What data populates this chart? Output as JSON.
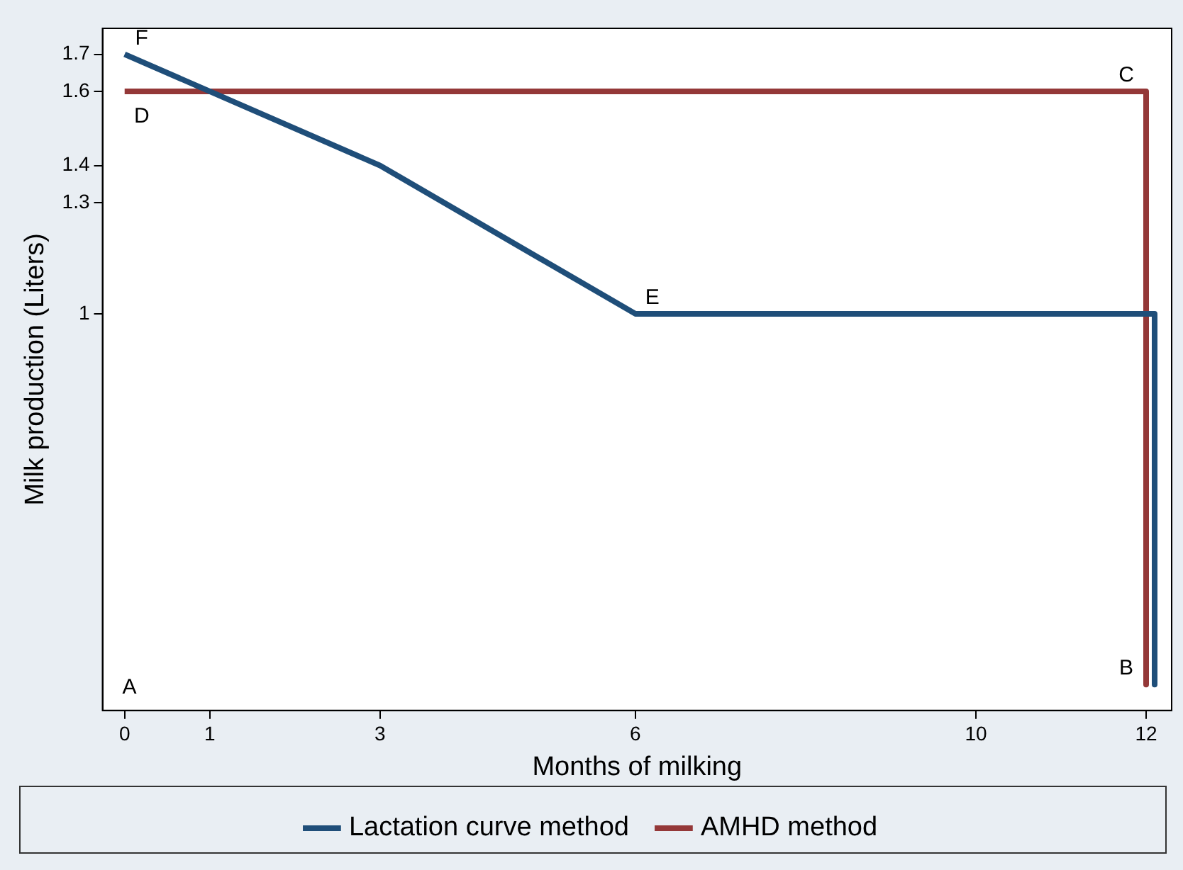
{
  "chart_data": {
    "type": "line",
    "xlabel": "Months of milking",
    "ylabel": "Milk production (Liters)",
    "xlim": [
      -0.26,
      12.3
    ],
    "xticks": [
      0,
      1,
      3,
      6,
      10,
      12
    ],
    "ylim": [
      -0.07,
      1.77
    ],
    "yticks": [
      1,
      1.3,
      1.4,
      1.6,
      1.7
    ],
    "series": [
      {
        "name": "Lactation curve method",
        "color": "#1f4e79",
        "x": [
          0,
          3,
          6,
          12.1,
          12.1
        ],
        "values": [
          1.7,
          1.4,
          1,
          1,
          0
        ]
      },
      {
        "name": "AMHD method",
        "color": "#943838",
        "x": [
          0,
          12,
          12
        ],
        "values": [
          1.6,
          1.6,
          0
        ]
      }
    ],
    "annotations": [
      {
        "text": "F",
        "x": 0,
        "y": 1.7
      },
      {
        "text": "D",
        "x": 0,
        "y": 1.6
      },
      {
        "text": "C",
        "x": 12,
        "y": 1.6
      },
      {
        "text": "E",
        "x": 6,
        "y": 1
      },
      "A",
      {
        "text": "B",
        "x": 12,
        "y": 0
      }
    ],
    "grid": false,
    "legend": "bottom",
    "marker": "none",
    "line_style": "solid"
  }
}
